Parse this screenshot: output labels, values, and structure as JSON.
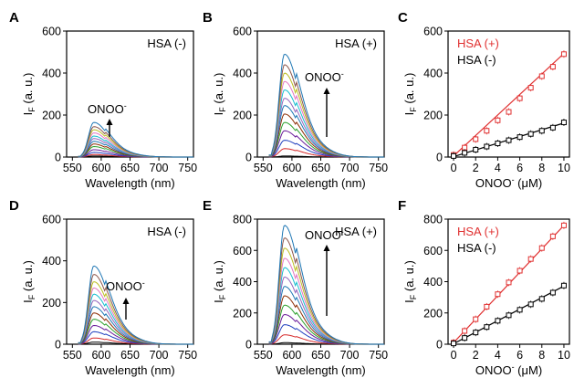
{
  "figure": {
    "wavelength_unit_label": "Wavelength (nm)",
    "intensity_label": "I",
    "intensity_sub": "F",
    "intensity_unit": "(a. u.)"
  },
  "chart_data": [
    {
      "panel": "A",
      "type": "line",
      "xlabel": "Wavelength (nm)",
      "ylabel": "IF (a. u.)",
      "xlim": [
        540,
        760
      ],
      "ylim": [
        0,
        600
      ],
      "xticks": [
        550,
        600,
        650,
        700,
        750
      ],
      "yticks": [
        0,
        200,
        400,
        600
      ],
      "annotation": "HSA (-)",
      "arrow_label": "ONOO",
      "arrow_sup": "-",
      "peak_wavelength": 587,
      "series_peaks": [
        5,
        12,
        22,
        35,
        50,
        62,
        75,
        88,
        100,
        115,
        130,
        145,
        165
      ],
      "series_colors": [
        "#000000",
        "#d62728",
        "#1f3fbf",
        "#6a1b9a",
        "#2ca02c",
        "#8c2d04",
        "#1f77b4",
        "#9467bd",
        "#17becf",
        "#e377c2",
        "#bcbd22",
        "#8c564b",
        "#1f77b4"
      ]
    },
    {
      "panel": "B",
      "type": "line",
      "xlabel": "Wavelength (nm)",
      "ylabel": "IF (a. u.)",
      "xlim": [
        540,
        760
      ],
      "ylim": [
        0,
        600
      ],
      "xticks": [
        550,
        600,
        650,
        700,
        750
      ],
      "yticks": [
        0,
        200,
        400,
        600
      ],
      "annotation": "HSA (+)",
      "arrow_label": "ONOO",
      "arrow_sup": "-",
      "peak_wavelength": 587,
      "series_peaks": [
        5,
        40,
        80,
        125,
        165,
        205,
        245,
        280,
        320,
        360,
        400,
        440,
        490
      ],
      "series_colors": [
        "#000000",
        "#d62728",
        "#1f3fbf",
        "#6a1b9a",
        "#2ca02c",
        "#8c2d04",
        "#1f77b4",
        "#9467bd",
        "#17becf",
        "#e377c2",
        "#bcbd22",
        "#8c564b",
        "#1f77b4"
      ]
    },
    {
      "panel": "C",
      "type": "scatter",
      "xlabel": "ONOO- (μM)",
      "ylabel": "IF (a. u.)",
      "xlim": [
        -0.5,
        10.5
      ],
      "ylim": [
        0,
        600
      ],
      "xticks": [
        0,
        2,
        4,
        6,
        8,
        10
      ],
      "yticks": [
        0,
        200,
        400,
        600
      ],
      "x": [
        0,
        1,
        2,
        3,
        4,
        5,
        6,
        7,
        8,
        9,
        10
      ],
      "series": [
        {
          "name": "HSA (+)",
          "color": "#e03030",
          "y": [
            10,
            45,
            85,
            125,
            175,
            215,
            280,
            330,
            385,
            430,
            490
          ],
          "fit": [
            5,
            493
          ]
        },
        {
          "name": "HSA (-)",
          "color": "#000000",
          "y": [
            5,
            20,
            35,
            50,
            65,
            80,
            95,
            110,
            125,
            140,
            165
          ],
          "fit": [
            2,
            162
          ]
        }
      ]
    },
    {
      "panel": "D",
      "type": "line",
      "xlabel": "Wavelength (nm)",
      "ylabel": "IF (a. u.)",
      "xlim": [
        540,
        760
      ],
      "ylim": [
        0,
        600
      ],
      "xticks": [
        550,
        600,
        650,
        700,
        750
      ],
      "yticks": [
        0,
        200,
        400,
        600
      ],
      "annotation": "HSA (-)",
      "arrow_label": "ONOO",
      "arrow_sup": "-",
      "peak_wavelength": 587,
      "series_peaks": [
        10,
        30,
        60,
        90,
        120,
        150,
        180,
        210,
        240,
        270,
        300,
        335,
        375
      ],
      "series_colors": [
        "#000000",
        "#d62728",
        "#1f3fbf",
        "#6a1b9a",
        "#2ca02c",
        "#8c2d04",
        "#1f77b4",
        "#9467bd",
        "#17becf",
        "#e377c2",
        "#bcbd22",
        "#8c564b",
        "#1f77b4"
      ]
    },
    {
      "panel": "E",
      "type": "line",
      "xlabel": "Wavelength (nm)",
      "ylabel": "IF (a. u.)",
      "xlim": [
        540,
        760
      ],
      "ylim": [
        0,
        800
      ],
      "xticks": [
        550,
        600,
        650,
        700,
        750
      ],
      "yticks": [
        0,
        200,
        400,
        600,
        800
      ],
      "annotation": "HSA (+)",
      "arrow_label": "ONOO",
      "arrow_sup": "-",
      "peak_wavelength": 587,
      "series_peaks": [
        10,
        60,
        125,
        190,
        250,
        310,
        370,
        430,
        490,
        550,
        615,
        680,
        760
      ],
      "series_colors": [
        "#000000",
        "#d62728",
        "#1f3fbf",
        "#6a1b9a",
        "#2ca02c",
        "#8c2d04",
        "#1f77b4",
        "#9467bd",
        "#17becf",
        "#e377c2",
        "#bcbd22",
        "#8c564b",
        "#1f77b4"
      ]
    },
    {
      "panel": "F",
      "type": "scatter",
      "xlabel": "ONOO- (μM)",
      "ylabel": "IF (a. u.)",
      "xlim": [
        -0.5,
        10.5
      ],
      "ylim": [
        0,
        800
      ],
      "xticks": [
        0,
        2,
        4,
        6,
        8,
        10
      ],
      "yticks": [
        0,
        200,
        400,
        600,
        800
      ],
      "x": [
        0,
        1,
        2,
        3,
        4,
        5,
        6,
        7,
        8,
        9,
        10
      ],
      "series": [
        {
          "name": "HSA (+)",
          "color": "#e03030",
          "y": [
            10,
            85,
            160,
            240,
            320,
            395,
            470,
            545,
            615,
            690,
            760
          ],
          "fit": [
            10,
            760
          ]
        },
        {
          "name": "HSA (-)",
          "color": "#000000",
          "y": [
            5,
            40,
            75,
            110,
            150,
            185,
            220,
            255,
            290,
            330,
            375
          ],
          "fit": [
            3,
            372
          ]
        }
      ]
    }
  ]
}
